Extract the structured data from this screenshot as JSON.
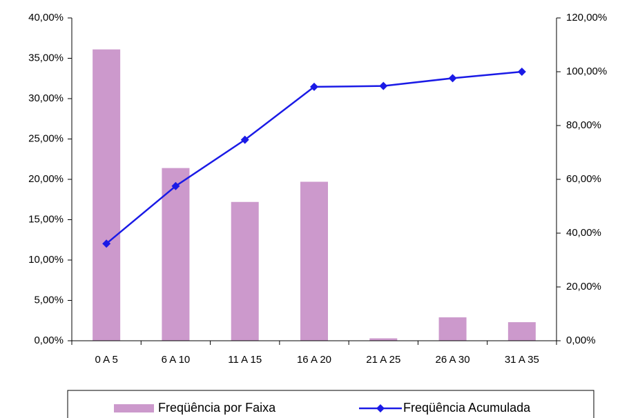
{
  "chart_data": {
    "type": "bar_line",
    "categories": [
      "0 A 5",
      "6 A 10",
      "11 A 15",
      "16 A 20",
      "21 A 25",
      "26 A 30",
      "31 A 35"
    ],
    "series": [
      {
        "name": "Freqüência por Faixa",
        "type": "bar",
        "color": "#cc99cc",
        "values": [
          36.1,
          21.4,
          17.2,
          19.7,
          0.3,
          2.9,
          2.3
        ]
      },
      {
        "name": "Freqüência Acumulada",
        "type": "line",
        "axis": "y2",
        "color": "#1a1ae6",
        "values": [
          36.1,
          57.5,
          74.7,
          94.4,
          94.7,
          97.6,
          100
        ]
      }
    ],
    "ylim": [
      0,
      40
    ],
    "yticks": [
      {
        "value": 0,
        "label": "0,00%"
      },
      {
        "value": 5,
        "label": "5,00%"
      },
      {
        "value": 10,
        "label": "10,00%"
      },
      {
        "value": 15,
        "label": "15,00%"
      },
      {
        "value": 20,
        "label": "20,00%"
      },
      {
        "value": 25,
        "label": "25,00%"
      },
      {
        "value": 30,
        "label": "30,00%"
      },
      {
        "value": 35,
        "label": "35,00%"
      },
      {
        "value": 40,
        "label": "40,00%"
      }
    ],
    "y2lim": [
      0,
      120
    ],
    "y2ticks": [
      {
        "value": 0,
        "label": "0,00%"
      },
      {
        "value": 20,
        "label": "20,00%"
      },
      {
        "value": 40,
        "label": "40,00%"
      },
      {
        "value": 60,
        "label": "60,00%"
      },
      {
        "value": 80,
        "label": "80,00%"
      },
      {
        "value": 100,
        "label": "100,00%"
      },
      {
        "value": 120,
        "label": "120,00%"
      }
    ],
    "legend": "bottom"
  }
}
